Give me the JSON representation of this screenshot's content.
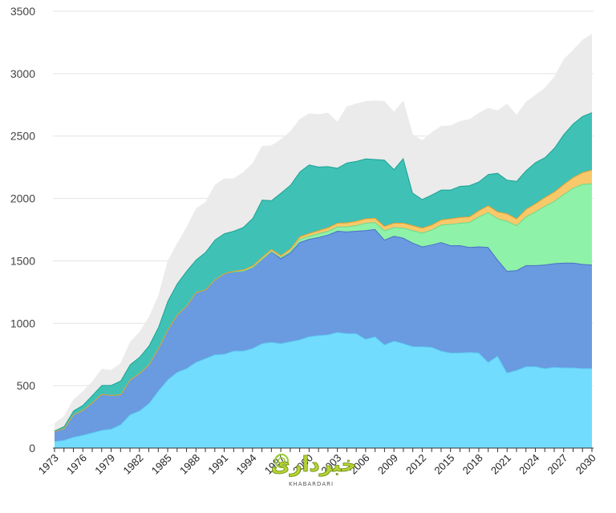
{
  "chart_data": {
    "type": "area",
    "stacked": true,
    "xlabel": "",
    "ylabel": "",
    "ylim": [
      0,
      3500
    ],
    "xlim": [
      1973,
      2030
    ],
    "yticks": [
      0,
      500,
      1000,
      1500,
      2000,
      2500,
      3000,
      3500
    ],
    "xticks": [
      1973,
      1976,
      1979,
      1982,
      1985,
      1988,
      1991,
      1994,
      1997,
      2000,
      2003,
      2006,
      2009,
      2012,
      2015,
      2018,
      2021,
      2024,
      2027,
      2030
    ],
    "grid": "horizontal",
    "x": [
      1973,
      1974,
      1975,
      1976,
      1977,
      1978,
      1979,
      1980,
      1981,
      1982,
      1983,
      1984,
      1985,
      1986,
      1987,
      1988,
      1989,
      1990,
      1991,
      1992,
      1993,
      1994,
      1995,
      1996,
      1997,
      1998,
      1999,
      2000,
      2001,
      2002,
      2003,
      2004,
      2005,
      2006,
      2007,
      2008,
      2009,
      2010,
      2011,
      2012,
      2013,
      2014,
      2015,
      2016,
      2017,
      2018,
      2019,
      2020,
      2021,
      2022,
      2023,
      2024,
      2025,
      2026,
      2027,
      2028,
      2029,
      2030
    ],
    "series": [
      {
        "color": "#72dcff",
        "stroke": "#5cc6f0",
        "values": [
          55,
          65,
          90,
          105,
          125,
          145,
          155,
          190,
          270,
          300,
          360,
          460,
          550,
          610,
          640,
          690,
          720,
          750,
          755,
          780,
          780,
          800,
          840,
          850,
          840,
          855,
          870,
          895,
          905,
          910,
          930,
          920,
          920,
          875,
          895,
          830,
          860,
          840,
          815,
          815,
          810,
          780,
          765,
          765,
          770,
          765,
          690,
          740,
          605,
          625,
          655,
          655,
          640,
          650,
          645,
          645,
          640,
          640
        ]
      },
      {
        "color": "#6a9ae0",
        "stroke": "#4b6fc8",
        "values": [
          80,
          95,
          180,
          200,
          240,
          290,
          270,
          240,
          280,
          300,
          310,
          340,
          400,
          460,
          500,
          560,
          550,
          600,
          645,
          635,
          640,
          650,
          675,
          730,
          680,
          710,
          780,
          780,
          785,
          800,
          810,
          815,
          820,
          870,
          860,
          840,
          840,
          845,
          830,
          800,
          820,
          870,
          860,
          860,
          840,
          850,
          920,
          770,
          815,
          800,
          810,
          810,
          830,
          830,
          840,
          840,
          835,
          830
        ]
      },
      {
        "color": "#8ef2a8",
        "stroke": "#6cd890",
        "values": [
          0,
          0,
          0,
          0,
          0,
          0,
          0,
          0,
          0,
          0,
          0,
          0,
          0,
          0,
          0,
          0,
          0,
          0,
          0,
          0,
          0,
          0,
          0,
          0,
          10,
          15,
          25,
          25,
          30,
          30,
          35,
          40,
          45,
          60,
          55,
          75,
          70,
          80,
          100,
          110,
          120,
          140,
          170,
          180,
          200,
          240,
          280,
          330,
          400,
          360,
          390,
          430,
          470,
          500,
          550,
          600,
          640,
          650
        ]
      },
      {
        "color": "#f7c96a",
        "stroke": "#e8a030",
        "values": [
          0,
          0,
          0,
          0,
          0,
          0,
          0,
          0,
          0,
          0,
          0,
          0,
          0,
          0,
          0,
          0,
          0,
          0,
          0,
          5,
          10,
          12,
          15,
          15,
          15,
          18,
          20,
          22,
          25,
          28,
          30,
          32,
          35,
          35,
          35,
          35,
          35,
          40,
          40,
          40,
          40,
          40,
          45,
          45,
          45,
          50,
          55,
          55,
          60,
          55,
          60,
          65,
          70,
          75,
          80,
          85,
          95,
          110
        ]
      },
      {
        "color": "#3fc1b6",
        "stroke": "#19a394",
        "values": [
          5,
          15,
          30,
          40,
          60,
          70,
          80,
          110,
          120,
          130,
          150,
          170,
          230,
          250,
          280,
          260,
          300,
          320,
          320,
          320,
          340,
          380,
          460,
          390,
          500,
          510,
          520,
          550,
          510,
          490,
          440,
          480,
          480,
          480,
          470,
          530,
          430,
          520,
          260,
          230,
          240,
          240,
          230,
          250,
          250,
          230,
          250,
          310,
          270,
          300,
          310,
          330,
          320,
          350,
          400,
          430,
          450,
          460
        ]
      },
      {
        "color": "#ebebeb",
        "stroke": "#ebebeb",
        "values": [
          60,
          80,
          90,
          110,
          110,
          130,
          120,
          140,
          180,
          200,
          230,
          250,
          320,
          320,
          350,
          410,
          400,
          440,
          440,
          420,
          440,
          440,
          430,
          440,
          430,
          430,
          420,
          410,
          420,
          430,
          370,
          450,
          460,
          460,
          470,
          470,
          460,
          460,
          470,
          470,
          500,
          510,
          515,
          520,
          530,
          550,
          530,
          500,
          610,
          530,
          550,
          540,
          555,
          570,
          600,
          590,
          610,
          630
        ]
      }
    ]
  },
  "watermark": {
    "title": "خبردارى",
    "subtitle": "KHABARDARI"
  }
}
